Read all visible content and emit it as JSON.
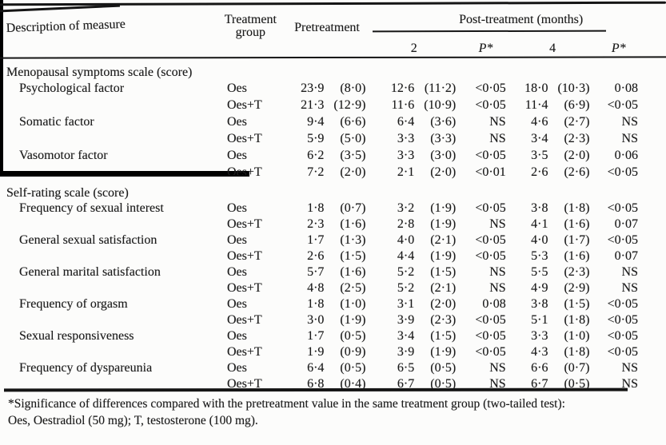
{
  "table": {
    "header": {
      "measure": "Description of measure",
      "group": "Treatment group",
      "pretreatment": "Pretreatment",
      "post_span": "Post-treatment (months)",
      "sub_cols": [
        "2",
        "P*",
        "4",
        "P*"
      ]
    },
    "sections": [
      {
        "title": "Menopausal symptoms scale (score)",
        "rows": [
          {
            "measure": "Psychological factor",
            "group": "Oes",
            "pre": [
              "23·9",
              "(8·0)"
            ],
            "m2": [
              "12·6",
              "(11·2)"
            ],
            "p2": "<0·05",
            "m4": [
              "18·0",
              "(10·3)"
            ],
            "p4": "0·08"
          },
          {
            "measure": "",
            "group": "Oes+T",
            "pre": [
              "21·3",
              "(12·9)"
            ],
            "m2": [
              "11·6",
              "(10·9)"
            ],
            "p2": "<0·05",
            "m4": [
              "11·4",
              "(6·9)"
            ],
            "p4": "<0·05"
          },
          {
            "measure": "Somatic factor",
            "group": "Oes",
            "pre": [
              "9·4",
              "(6·6)"
            ],
            "m2": [
              "6·4",
              "(3·6)"
            ],
            "p2": "NS",
            "m4": [
              "4·6",
              "(2·7)"
            ],
            "p4": "NS"
          },
          {
            "measure": "",
            "group": "Oes+T",
            "pre": [
              "5·9",
              "(5·0)"
            ],
            "m2": [
              "3·3",
              "(3·3)"
            ],
            "p2": "NS",
            "m4": [
              "3·4",
              "(2·3)"
            ],
            "p4": "NS"
          },
          {
            "measure": "Vasomotor factor",
            "group": "Oes",
            "pre": [
              "6·2",
              "(3·5)"
            ],
            "m2": [
              "3·3",
              "(3·0)"
            ],
            "p2": "<0·05",
            "m4": [
              "3·5",
              "(2·0)"
            ],
            "p4": "0·06"
          },
          {
            "measure": "",
            "group": "Oes+T",
            "pre": [
              "7·2",
              "(2·0)"
            ],
            "m2": [
              "2·1",
              "(2·0)"
            ],
            "p2": "<0·01",
            "m4": [
              "2·6",
              "(2·6)"
            ],
            "p4": "<0·05"
          }
        ]
      },
      {
        "title": "Self-rating scale (score)",
        "rows": [
          {
            "measure": "Frequency of sexual interest",
            "group": "Oes",
            "pre": [
              "1·8",
              "(0·7)"
            ],
            "m2": [
              "3·2",
              "(1·9)"
            ],
            "p2": "<0·05",
            "m4": [
              "3·8",
              "(1·8)"
            ],
            "p4": "<0·05"
          },
          {
            "measure": "",
            "group": "Oes+T",
            "pre": [
              "2·3",
              "(1·6)"
            ],
            "m2": [
              "2·8",
              "(1·9)"
            ],
            "p2": "NS",
            "m4": [
              "4·1",
              "(1·6)"
            ],
            "p4": "0·07"
          },
          {
            "measure": "General sexual satisfaction",
            "group": "Oes",
            "pre": [
              "1·7",
              "(1·3)"
            ],
            "m2": [
              "4·0",
              "(2·1)"
            ],
            "p2": "<0·05",
            "m4": [
              "4·0",
              "(1·7)"
            ],
            "p4": "<0·05"
          },
          {
            "measure": "",
            "group": "Oes+T",
            "pre": [
              "2·6",
              "(1·5)"
            ],
            "m2": [
              "4·4",
              "(1·9)"
            ],
            "p2": "<0·05",
            "m4": [
              "5·3",
              "(1·6)"
            ],
            "p4": "0·07"
          },
          {
            "measure": "General marital satisfaction",
            "group": "Oes",
            "pre": [
              "5·7",
              "(1·6)"
            ],
            "m2": [
              "5·2",
              "(1·5)"
            ],
            "p2": "NS",
            "m4": [
              "5·5",
              "(2·3)"
            ],
            "p4": "NS"
          },
          {
            "measure": "",
            "group": "Oes+T",
            "pre": [
              "4·8",
              "(2·5)"
            ],
            "m2": [
              "5·2",
              "(2·1)"
            ],
            "p2": "NS",
            "m4": [
              "4·9",
              "(2·9)"
            ],
            "p4": "NS"
          },
          {
            "measure": "Frequency of orgasm",
            "group": "Oes",
            "pre": [
              "1·8",
              "(1·0)"
            ],
            "m2": [
              "3·1",
              "(2·0)"
            ],
            "p2": "0·08",
            "m4": [
              "3·8",
              "(1·5)"
            ],
            "p4": "<0·05"
          },
          {
            "measure": "",
            "group": "Oes+T",
            "pre": [
              "3·0",
              "(1·9)"
            ],
            "m2": [
              "3·9",
              "(2·3)"
            ],
            "p2": "<0·05",
            "m4": [
              "5·1",
              "(1·8)"
            ],
            "p4": "<0·05"
          },
          {
            "measure": "Sexual responsiveness",
            "group": "Oes",
            "pre": [
              "1·7",
              "(0·5)"
            ],
            "m2": [
              "3·4",
              "(1·5)"
            ],
            "p2": "<0·05",
            "m4": [
              "3·3",
              "(1·0)"
            ],
            "p4": "<0·05"
          },
          {
            "measure": "",
            "group": "Oes+T",
            "pre": [
              "1·9",
              "(0·9)"
            ],
            "m2": [
              "3·9",
              "(1·9)"
            ],
            "p2": "<0·05",
            "m4": [
              "4·3",
              "(1·8)"
            ],
            "p4": "<0·05"
          },
          {
            "measure": "Frequency of dyspareunia",
            "group": "Oes",
            "pre": [
              "6·4",
              "(0·5)"
            ],
            "m2": [
              "6·5",
              "(0·5)"
            ],
            "p2": "NS",
            "m4": [
              "6·6",
              "(0·7)"
            ],
            "p4": "NS"
          },
          {
            "measure": "",
            "group": "Oes+T",
            "pre": [
              "6·8",
              "(0·4)"
            ],
            "m2": [
              "6·7",
              "(0·5)"
            ],
            "p2": "NS",
            "m4": [
              "6·7",
              "(0·5)"
            ],
            "p4": "NS"
          }
        ]
      }
    ]
  },
  "footnote": {
    "line1": "*Significance of differences compared with the pretreatment value in the same treatment group (two-tailed test):",
    "line2": "Oes, Oestradiol (50 mg); T, testosterone (100 mg)."
  },
  "colors": {
    "ink": "#1b1b1b",
    "paper": "#fcfcfb",
    "artifact_black": "#000000"
  }
}
